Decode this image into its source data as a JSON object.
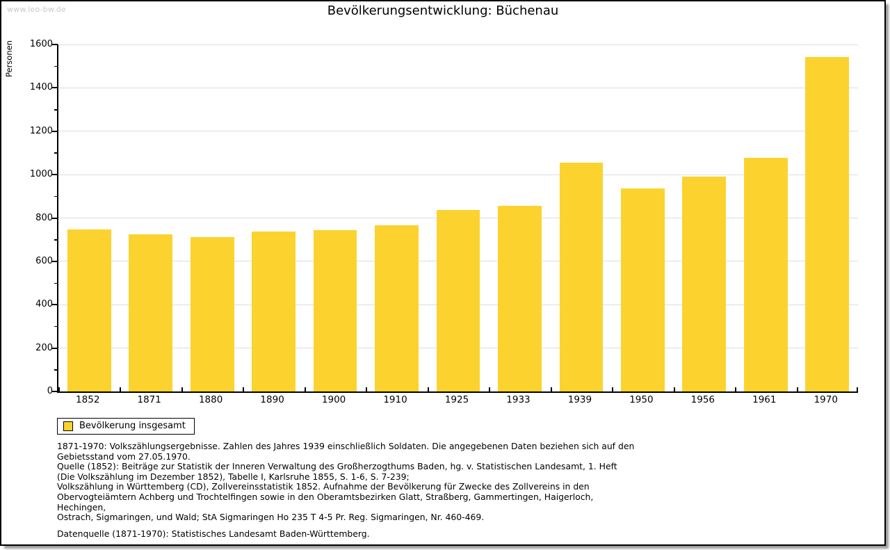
{
  "watermark": "www.leo-bw.de",
  "header": {
    "title": "Bevölkerungsentwicklung: Büchenau"
  },
  "legend": {
    "label": "Bevölkerung insgesamt"
  },
  "colors": {
    "bar": "#fcd32e",
    "grid": "#dddddd",
    "axis": "#000000",
    "watermark": "#c9c9c9"
  },
  "chart_data": {
    "type": "bar",
    "title": "Bevölkerungsentwicklung: Büchenau",
    "xlabel": "",
    "ylabel": "Personen",
    "categories": [
      "1852",
      "1871",
      "1880",
      "1890",
      "1900",
      "1910",
      "1925",
      "1933",
      "1939",
      "1950",
      "1956",
      "1961",
      "1970"
    ],
    "values": [
      747,
      724,
      712,
      736,
      743,
      765,
      838,
      856,
      1055,
      935,
      990,
      1078,
      1541
    ],
    "series_name": "Bevölkerung insgesamt",
    "ylim": [
      0,
      1600
    ],
    "ytick_step": 200,
    "yticks": [
      0,
      200,
      400,
      600,
      800,
      1000,
      1200,
      1400,
      1600
    ],
    "grid": true,
    "legend_position": "bottom-left",
    "bar_color": "#fcd32e"
  },
  "notes": {
    "lines": [
      "1871-1970: Volkszählungsergebnisse. Zahlen des Jahres 1939 einschließlich Soldaten. Die angegebenen Daten beziehen sich auf den",
      "Gebietsstand vom 27.05.1970.",
      "Quelle (1852): Beiträge zur Statistik der Inneren Verwaltung des Großherzogthums Baden, hg. v. Statistischen Landesamt, 1. Heft",
      "(Die Volkszählung im Dezember 1852), Tabelle I, Karlsruhe 1855, S. 1-6, S. 7-239;",
      "Volkszählung in Württemberg (CD), Zollvereinsstatistik 1852. Aufnahme der Bevölkerung für Zwecke des Zollvereins in den",
      "Obervogteiämtern Achberg und Trochtelfingen sowie in den Oberamtsbezirken Glatt, Straßberg, Gammertingen, Haigerloch, Hechingen,",
      "Ostrach, Sigmaringen, und Wald; StA Sigmaringen Ho 235 T 4-5 Pr. Reg. Sigmaringen, Nr. 460-469."
    ],
    "datasource": "Datenquelle (1871-1970): Statistisches Landesamt Baden-Württemberg."
  }
}
